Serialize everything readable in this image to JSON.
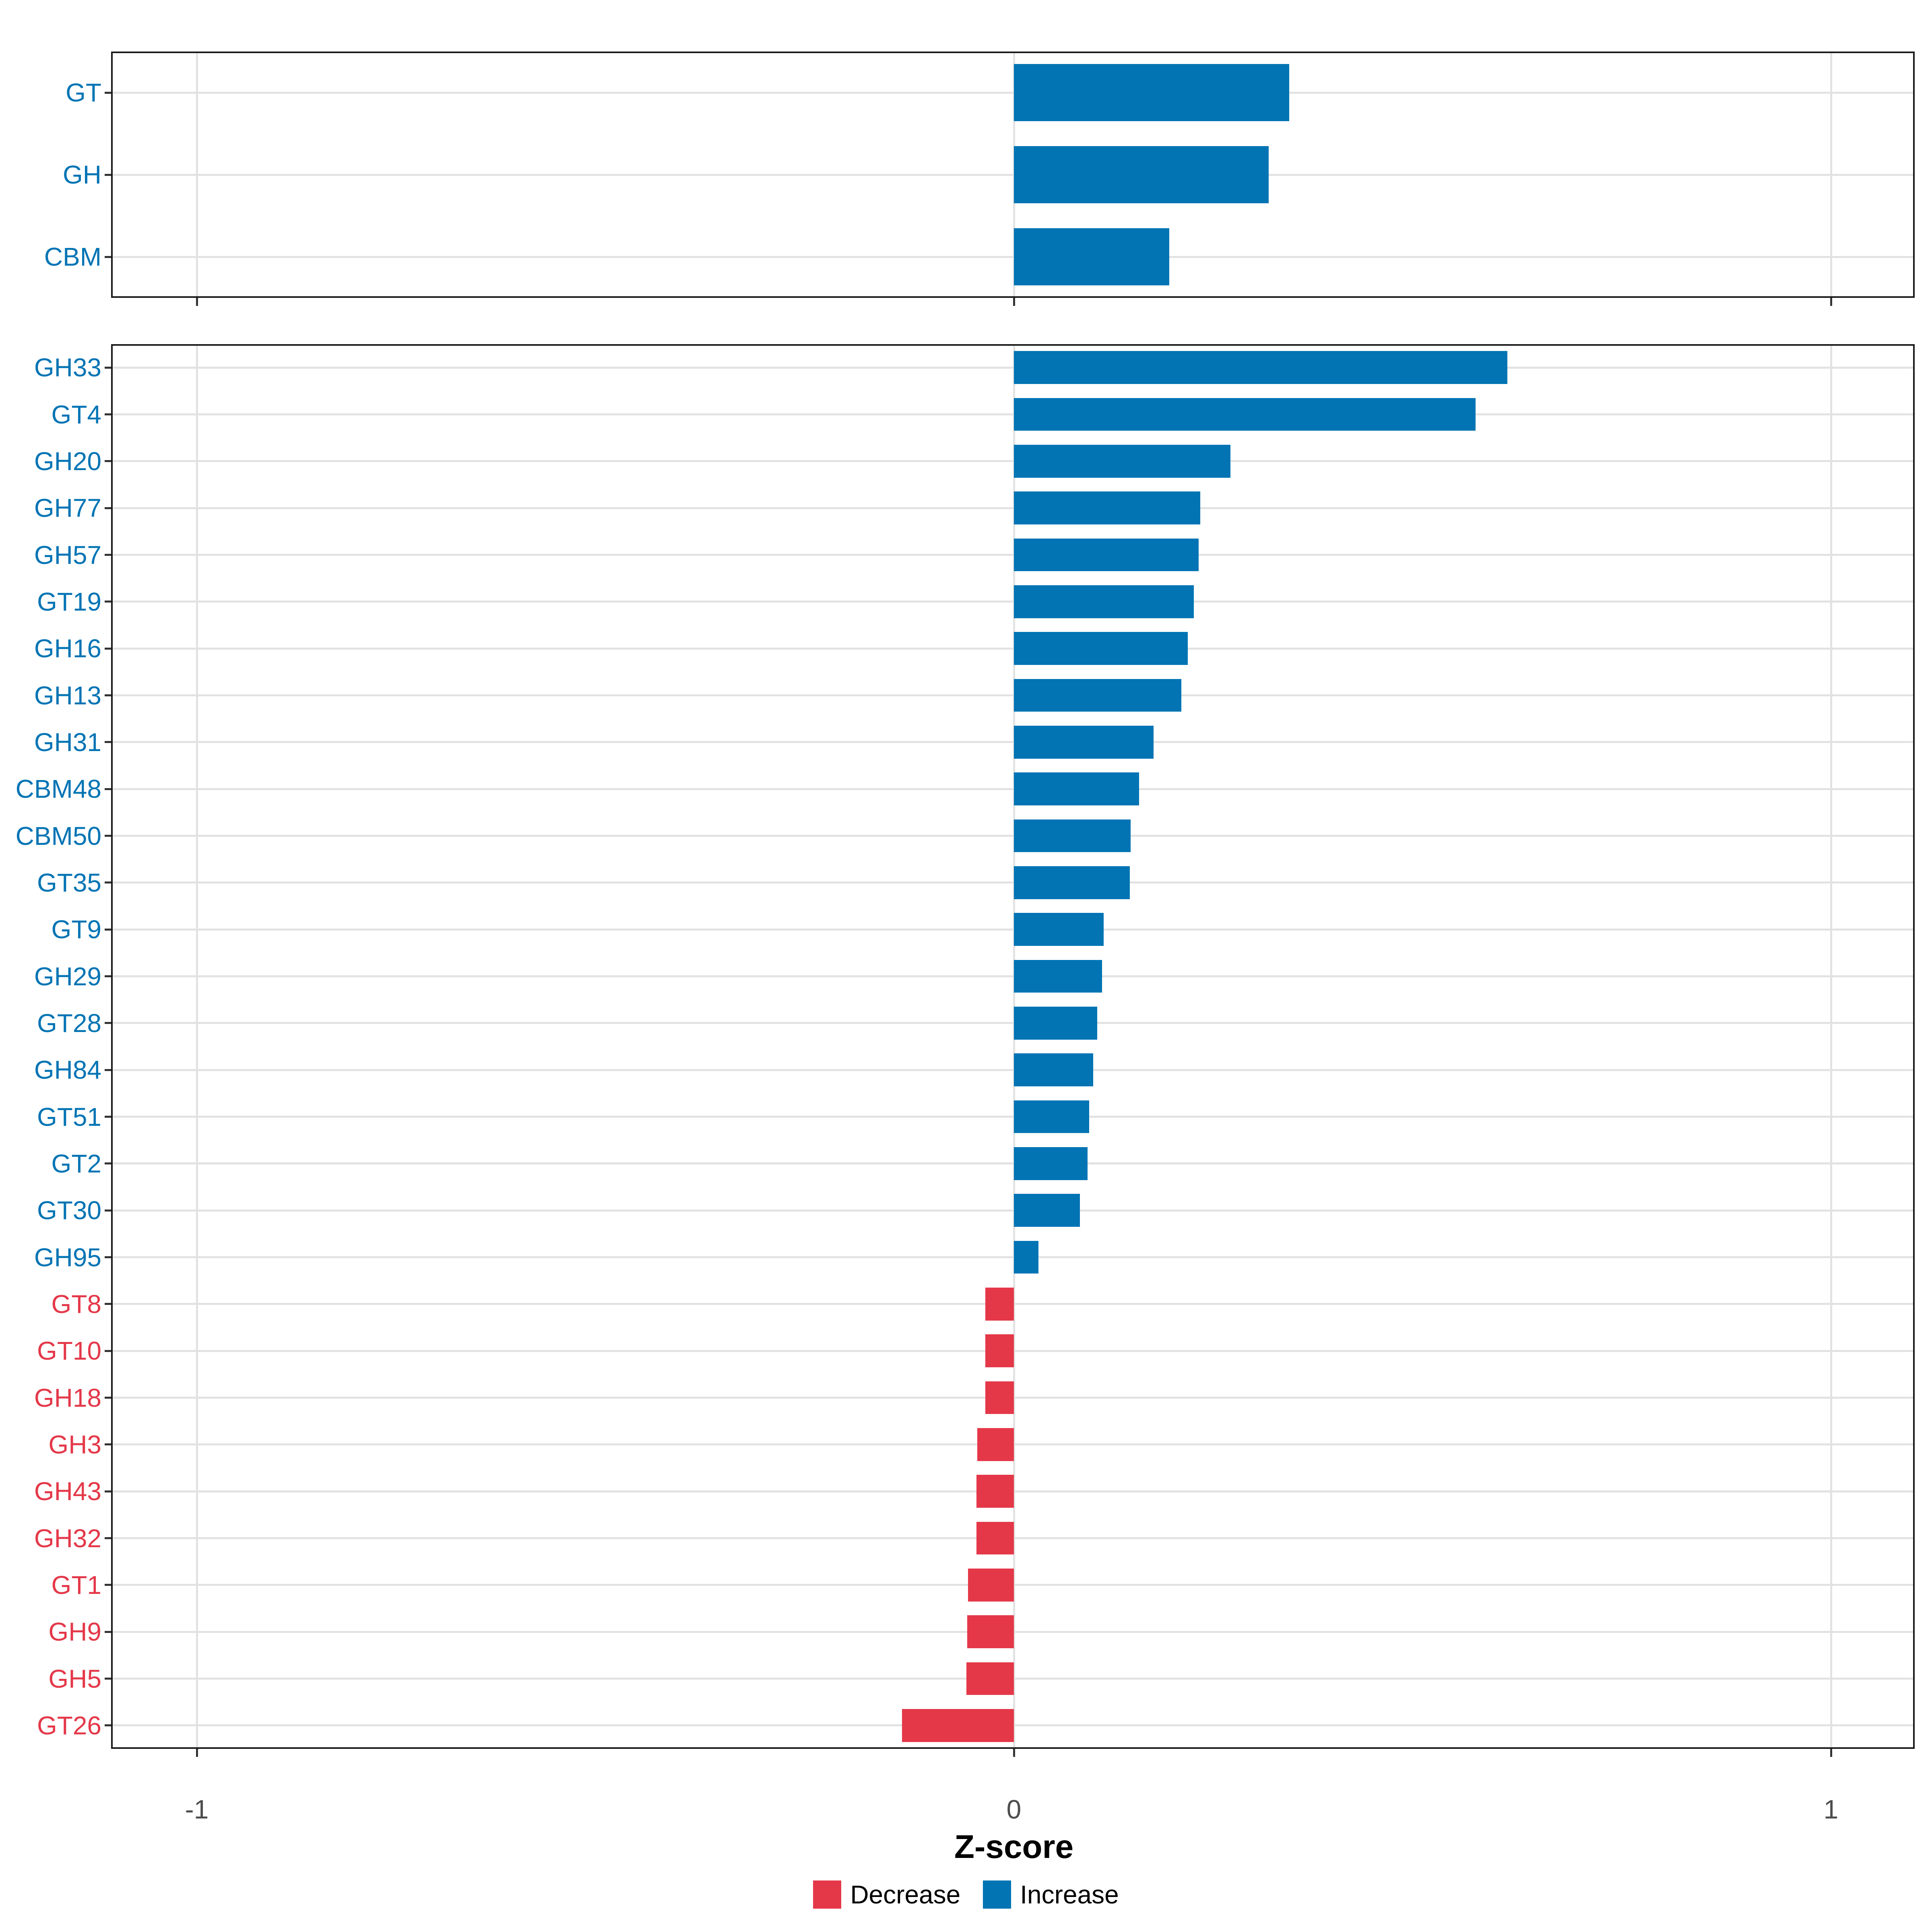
{
  "figure": {
    "background": "#FFFFFF",
    "xlabel": "Z-score",
    "x_ticks": [
      {
        "value": -1,
        "label": "-1"
      },
      {
        "value": 0,
        "label": "0"
      },
      {
        "value": 1,
        "label": "1"
      }
    ],
    "colors": {
      "increase": "#0274B4",
      "decrease": "#E43849",
      "grid": "#E2E2E2",
      "panel_border": "#1A1A1A",
      "axis_tick_label": "#4D4D4D",
      "tick_mark": "#333333"
    },
    "legend": [
      {
        "label": "Decrease",
        "key": "decrease",
        "color": "#E43849"
      },
      {
        "label": "Increase",
        "key": "increase",
        "color": "#0274B4"
      }
    ]
  },
  "chart_data": [
    {
      "type": "bar",
      "orientation": "horizontal",
      "panel": "cazyme-classes",
      "categories": [
        "GT",
        "GH",
        "CBM"
      ],
      "values": [
        0.337,
        0.312,
        0.19
      ],
      "xlabel": "Z-score",
      "xlim": [
        -1.1,
        1.1
      ],
      "grid_x": [
        -1,
        0,
        1
      ],
      "grid": "on",
      "legend_position": "bottom"
    },
    {
      "type": "bar",
      "orientation": "horizontal",
      "panel": "cazyme-families",
      "categories": [
        "GH33",
        "GT4",
        "GH20",
        "GH77",
        "GH57",
        "GT19",
        "GH16",
        "GH13",
        "GH31",
        "CBM48",
        "CBM50",
        "GT35",
        "GT9",
        "GH29",
        "GT28",
        "GH84",
        "GT51",
        "GT2",
        "GT30",
        "GH95",
        "GT8",
        "GT10",
        "GH18",
        "GH3",
        "GH43",
        "GH32",
        "GT1",
        "GH9",
        "GH5",
        "GT26"
      ],
      "values": [
        0.604,
        0.565,
        0.265,
        0.228,
        0.226,
        0.22,
        0.213,
        0.205,
        0.171,
        0.153,
        0.143,
        0.142,
        0.11,
        0.108,
        0.102,
        0.097,
        0.092,
        0.09,
        0.081,
        0.03,
        -0.035,
        -0.035,
        -0.035,
        -0.045,
        -0.046,
        -0.046,
        -0.056,
        -0.057,
        -0.058,
        -0.137
      ],
      "xlabel": "Z-score",
      "xlim": [
        -1.1,
        1.1
      ],
      "grid_x": [
        -1,
        0,
        1
      ],
      "grid": "on",
      "legend_position": "bottom"
    }
  ]
}
